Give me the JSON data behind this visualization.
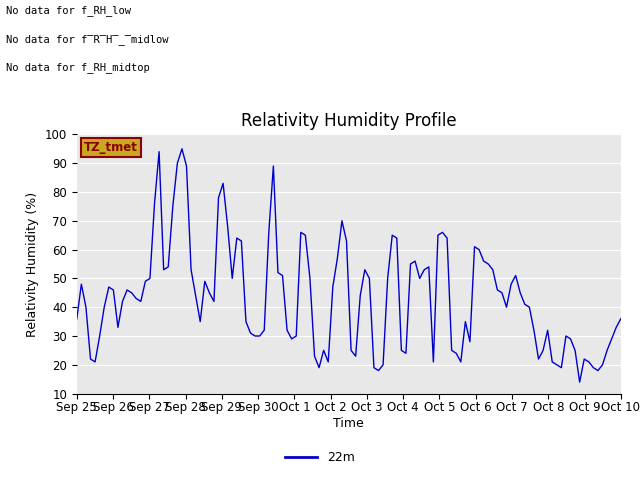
{
  "title": "Relativity Humidity Profile",
  "ylabel": "Relativity Humidity (%)",
  "xlabel": "Time",
  "ylim": [
    10,
    100
  ],
  "legend_label": "22m",
  "line_color": "#0000cc",
  "background_color": "#e8e8e8",
  "no_data_texts": [
    "No data for f_RH_low",
    "No data for f̅R̅H̅_̅midlow",
    "No data for f_RH_midtop"
  ],
  "tz_label": "TZ_tmet",
  "x_tick_labels": [
    "Sep 25",
    "Sep 26",
    "Sep 27",
    "Sep 28",
    "Sep 29",
    "Sep 30",
    "Oct 1",
    "Oct 2",
    "Oct 3",
    "Oct 4",
    "Oct 5",
    "Oct 6",
    "Oct 7",
    "Oct 8",
    "Oct 9",
    "Oct 10"
  ],
  "y_values": [
    36,
    48,
    40,
    22,
    21,
    30,
    40,
    47,
    46,
    33,
    42,
    46,
    45,
    43,
    42,
    49,
    50,
    76,
    94,
    53,
    54,
    75,
    90,
    95,
    89,
    53,
    44,
    35,
    49,
    45,
    42,
    78,
    83,
    68,
    50,
    64,
    63,
    35,
    31,
    30,
    30,
    32,
    66,
    89,
    52,
    51,
    32,
    29,
    30,
    66,
    65,
    50,
    23,
    19,
    25,
    21,
    47,
    57,
    70,
    63,
    25,
    23,
    44,
    53,
    50,
    19,
    18,
    20,
    50,
    65,
    64,
    25,
    24,
    55,
    56,
    50,
    53,
    54,
    21,
    65,
    66,
    64,
    25,
    24,
    21,
    35,
    28,
    61,
    60,
    56,
    55,
    53,
    46,
    45,
    40,
    48,
    51,
    45,
    41,
    40,
    32,
    22,
    25,
    32,
    21,
    20,
    19,
    30,
    29,
    25,
    14,
    22,
    21,
    19,
    18,
    20,
    25,
    29,
    33,
    36
  ],
  "yticks": [
    10,
    20,
    30,
    40,
    50,
    60,
    70,
    80,
    90,
    100
  ],
  "grid_color": "#ffffff",
  "title_fontsize": 12,
  "axis_fontsize": 9,
  "tick_fontsize": 8.5
}
